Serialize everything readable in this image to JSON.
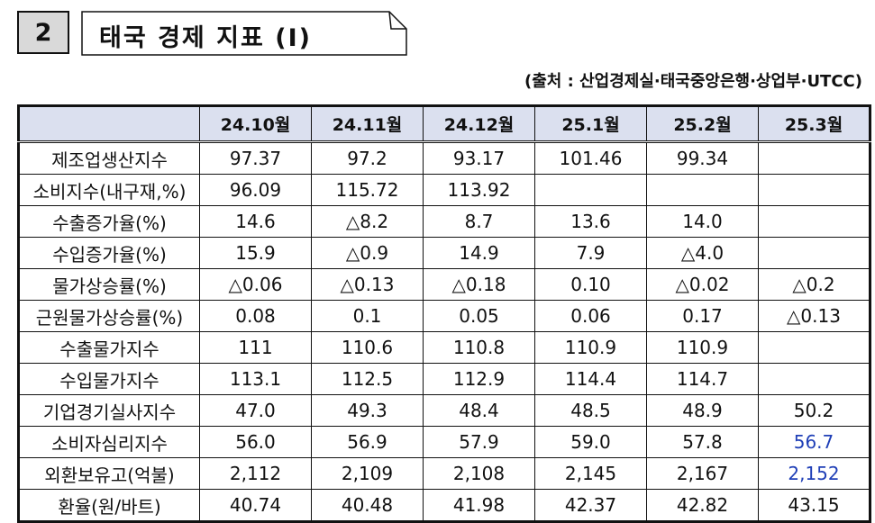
{
  "header": {
    "section_number": "2",
    "title": "태국 경제 지표 (Ⅰ)",
    "source": "(출처 : 산업경제실·태국중앙은행·상업부·UTCC)"
  },
  "table": {
    "columns": [
      "",
      "24.10월",
      "24.11월",
      "24.12월",
      "25.1월",
      "25.2월",
      "25.3월"
    ],
    "rows": [
      {
        "label": "제조업생산지수",
        "values": [
          "97.37",
          "97.2",
          "93.17",
          "101.46",
          "99.34",
          ""
        ]
      },
      {
        "label": "소비지수(내구재,%)",
        "values": [
          "96.09",
          "115.72",
          "113.92",
          "",
          "",
          ""
        ]
      },
      {
        "label": "수출증가율(%)",
        "values": [
          "14.6",
          "△8.2",
          "8.7",
          "13.6",
          "14.0",
          ""
        ]
      },
      {
        "label": "수입증가율(%)",
        "values": [
          "15.9",
          "△0.9",
          "14.9",
          "7.9",
          "△4.0",
          ""
        ]
      },
      {
        "label": "물가상승률(%)",
        "values": [
          "△0.06",
          "△0.13",
          "△0.18",
          "0.10",
          "△0.02",
          "△0.2"
        ]
      },
      {
        "label": "근원물가상승률(%)",
        "values": [
          "0.08",
          "0.1",
          "0.05",
          "0.06",
          "0.17",
          "△0.13"
        ]
      },
      {
        "label": "수출물가지수",
        "values": [
          "111",
          "110.6",
          "110.8",
          "110.9",
          "110.9",
          ""
        ]
      },
      {
        "label": "수입물가지수",
        "values": [
          "113.1",
          "112.5",
          "112.9",
          "114.4",
          "114.7",
          ""
        ]
      },
      {
        "label": "기업경기실사지수",
        "values": [
          "47.0",
          "49.3",
          "48.4",
          "48.5",
          "48.9",
          "50.2"
        ]
      },
      {
        "label": "소비자심리지수",
        "values": [
          "56.0",
          "56.9",
          "57.9",
          "59.0",
          "57.8",
          "56.7"
        ]
      },
      {
        "label": "외환보유고(억불)",
        "values": [
          "2,112",
          "2,109",
          "2,108",
          "2,145",
          "2,167",
          "2,152"
        ]
      },
      {
        "label": "환율(원/바트)",
        "values": [
          "40.74",
          "40.48",
          "41.98",
          "42.37",
          "42.82",
          "43.15"
        ]
      }
    ]
  },
  "colors": {
    "header_bg": "#dbe0ef",
    "number_box_bg": "#d9d9d9",
    "highlight_blue": "#1f3fb7"
  }
}
